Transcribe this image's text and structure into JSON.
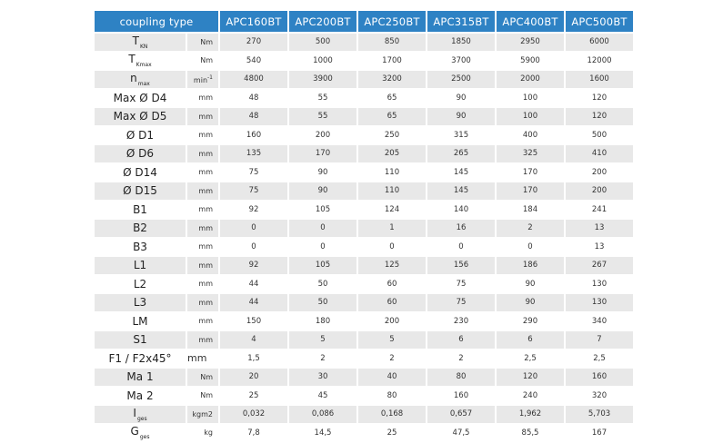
{
  "header": {
    "title": "coupling type",
    "columns": [
      "APC160BT",
      "APC200BT",
      "APC250BT",
      "APC315BT",
      "APC400BT",
      "APC500BT"
    ]
  },
  "rows": [
    {
      "symbol": "T",
      "sub": "KN",
      "unit": "Nm",
      "values": [
        "270",
        "500",
        "850",
        "1850",
        "2950",
        "6000"
      ]
    },
    {
      "symbol": "T",
      "sub": "Kmax",
      "unit": "Nm",
      "values": [
        "540",
        "1000",
        "1700",
        "3700",
        "5900",
        "12000"
      ]
    },
    {
      "symbol": "n",
      "sub": "max",
      "unit": "min",
      "unit_sup": "-1",
      "values": [
        "4800",
        "3900",
        "3200",
        "2500",
        "2000",
        "1600"
      ]
    },
    {
      "symbol": "Max Ø D4",
      "sub": "",
      "unit": "mm",
      "values": [
        "48",
        "55",
        "65",
        "90",
        "100",
        "120"
      ]
    },
    {
      "symbol": "Max Ø D5",
      "sub": "",
      "unit": "mm",
      "values": [
        "48",
        "55",
        "65",
        "90",
        "100",
        "120"
      ]
    },
    {
      "symbol": "Ø D1",
      "sub": "",
      "unit": "mm",
      "values": [
        "160",
        "200",
        "250",
        "315",
        "400",
        "500"
      ]
    },
    {
      "symbol": "Ø D6",
      "sub": "",
      "unit": "mm",
      "values": [
        "135",
        "170",
        "205",
        "265",
        "325",
        "410"
      ]
    },
    {
      "symbol": "Ø D14",
      "sub": "",
      "unit": "mm",
      "values": [
        "75",
        "90",
        "110",
        "145",
        "170",
        "200"
      ]
    },
    {
      "symbol": "Ø D15",
      "sub": "",
      "unit": "mm",
      "values": [
        "75",
        "90",
        "110",
        "145",
        "170",
        "200"
      ]
    },
    {
      "symbol": "B1",
      "sub": "",
      "unit": "mm",
      "values": [
        "92",
        "105",
        "124",
        "140",
        "184",
        "241"
      ]
    },
    {
      "symbol": "B2",
      "sub": "",
      "unit": "mm",
      "values": [
        "0",
        "0",
        "1",
        "16",
        "2",
        "13"
      ]
    },
    {
      "symbol": "B3",
      "sub": "",
      "unit": "mm",
      "values": [
        "0",
        "0",
        "0",
        "0",
        "0",
        "13"
      ]
    },
    {
      "symbol": "L1",
      "sub": "",
      "unit": "mm",
      "values": [
        "92",
        "105",
        "125",
        "156",
        "186",
        "267"
      ]
    },
    {
      "symbol": "L2",
      "sub": "",
      "unit": "mm",
      "values": [
        "44",
        "50",
        "60",
        "75",
        "90",
        "130"
      ]
    },
    {
      "symbol": "L3",
      "sub": "",
      "unit": "mm",
      "values": [
        "44",
        "50",
        "60",
        "75",
        "90",
        "130"
      ]
    },
    {
      "symbol": "LM",
      "sub": "",
      "unit": "mm",
      "values": [
        "150",
        "180",
        "200",
        "230",
        "290",
        "340"
      ]
    },
    {
      "symbol": "S1",
      "sub": "",
      "unit": "mm",
      "values": [
        "4",
        "5",
        "5",
        "6",
        "6",
        "7"
      ]
    },
    {
      "symbol": "F1 / F2x45°",
      "sub": "",
      "unit": "mm",
      "unit_large": true,
      "values": [
        "1,5",
        "2",
        "2",
        "2",
        "2,5",
        "2,5"
      ]
    },
    {
      "symbol": "Ma 1",
      "sub": "",
      "unit": "Nm",
      "values": [
        "20",
        "30",
        "40",
        "80",
        "120",
        "160"
      ]
    },
    {
      "symbol": "Ma 2",
      "sub": "",
      "unit": "Nm",
      "values": [
        "25",
        "45",
        "80",
        "160",
        "240",
        "320"
      ]
    },
    {
      "symbol": "I",
      "sub": "ges",
      "unit": "kgm2",
      "values": [
        "0,032",
        "0,086",
        "0,168",
        "0,657",
        "1,962",
        "5,703"
      ]
    },
    {
      "symbol": "G",
      "sub": "ges",
      "unit": "kg",
      "values": [
        "7,8",
        "14,5",
        "25",
        "47,5",
        "85,5",
        "167"
      ]
    }
  ]
}
